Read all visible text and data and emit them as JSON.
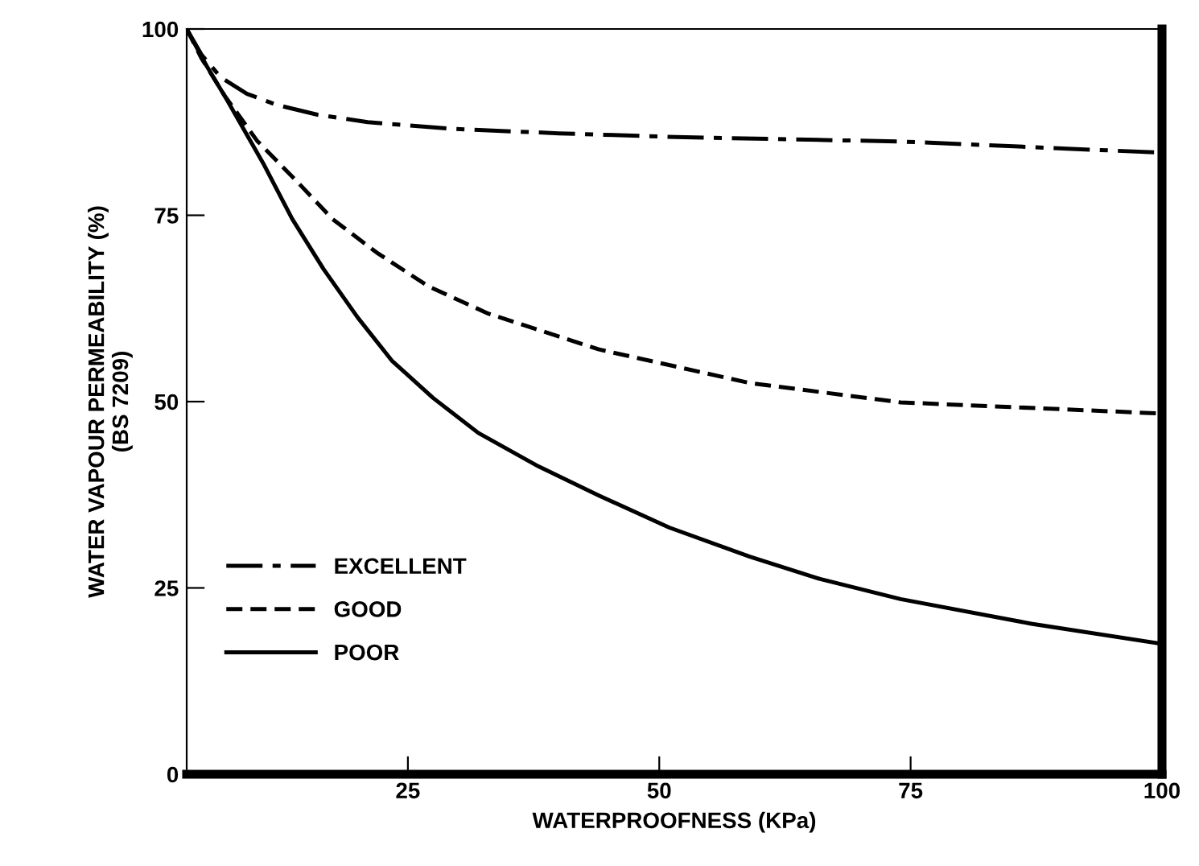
{
  "chart_data": {
    "type": "line",
    "xlabel": "WATERPROOFNESS (KPa)",
    "ylabel": "WATER VAPOUR PERMEABILITY (%)\n(BS 7209)",
    "xlim": [
      3,
      100
    ],
    "ylim": [
      0,
      100
    ],
    "xticks": [
      25,
      50,
      75,
      100
    ],
    "yticks": [
      0,
      25,
      50,
      75,
      100
    ],
    "grid": false,
    "legend": "lower left",
    "marker": "none",
    "series": [
      {
        "name": "EXCELLENT",
        "color": "#000000",
        "line_style": "dashdot",
        "x": [
          3,
          4.5,
          6.4,
          9,
          12,
          16,
          21,
          29.4,
          40,
          51.7,
          74,
          100
        ],
        "values": [
          100,
          96.5,
          93.5,
          91.3,
          89.8,
          88.5,
          87.5,
          86.6,
          86,
          85.5,
          84.9,
          83.4
        ]
      },
      {
        "name": "GOOD",
        "color": "#000000",
        "line_style": "dashed",
        "x": [
          3,
          4.5,
          6.8,
          10,
          14,
          17.5,
          21.9,
          27,
          33,
          44,
          59,
          74,
          100
        ],
        "values": [
          100,
          96,
          91,
          85,
          79.5,
          74.5,
          70,
          65.5,
          61.8,
          57,
          52.5,
          49.9,
          48.4
        ]
      },
      {
        "name": "POOR",
        "color": "#000000",
        "line_style": "solid",
        "x": [
          3,
          5,
          7,
          10.6,
          13.5,
          16.6,
          20,
          23.4,
          27.5,
          32,
          38,
          44,
          51,
          59,
          66,
          74,
          87,
          100
        ],
        "values": [
          100,
          95,
          90.5,
          82,
          74.5,
          67.8,
          61.3,
          55.5,
          50.5,
          45.8,
          41.3,
          37.4,
          33.1,
          29.2,
          26.2,
          23.5,
          20.2,
          17.5
        ]
      }
    ]
  }
}
